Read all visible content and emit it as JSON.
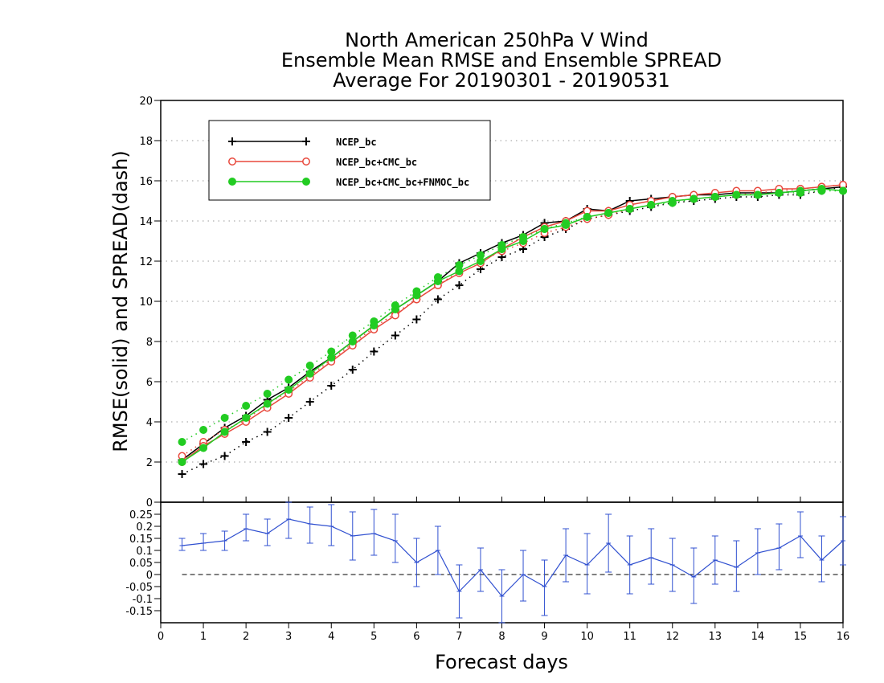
{
  "chart_data": {
    "type": "line",
    "title": [
      "North American 250hPa V Wind",
      "Ensemble Mean RMSE and Ensemble SPREAD",
      "Average For 20190301 - 20190531"
    ],
    "xlabel": "Forecast days",
    "ylabel": "RMSE(solid) and SPREAD(dash)",
    "xlim": [
      0,
      16
    ],
    "ylim": [
      0,
      20
    ],
    "x_ticks": [
      "0",
      "1",
      "2",
      "3",
      "4",
      "5",
      "6",
      "7",
      "8",
      "9",
      "10",
      "11",
      "12",
      "13",
      "14",
      "15",
      "16"
    ],
    "y_ticks": [
      "0",
      "2",
      "4",
      "6",
      "8",
      "10",
      "12",
      "14",
      "16",
      "18",
      "20"
    ],
    "grid": "horizontal dotted",
    "legend_position": "top-left",
    "x": [
      0.5,
      1,
      1.5,
      2,
      2.5,
      3,
      3.5,
      4,
      4.5,
      5,
      5.5,
      6,
      6.5,
      7,
      7.5,
      8,
      8.5,
      9,
      9.5,
      10,
      10.5,
      11,
      11.5,
      12,
      12.5,
      13,
      13.5,
      14,
      14.5,
      15,
      15.5,
      16
    ],
    "series": [
      {
        "name": "NCEP_bc",
        "color": "#000000",
        "marker": "plus",
        "rmse": [
          2.1,
          2.9,
          3.7,
          4.3,
          5.1,
          5.7,
          6.5,
          7.2,
          8.0,
          8.8,
          9.6,
          10.3,
          11.0,
          11.9,
          12.4,
          12.9,
          13.3,
          13.9,
          14.0,
          14.6,
          14.5,
          15.0,
          15.1,
          15.2,
          15.3,
          15.3,
          15.4,
          15.4,
          15.4,
          15.5,
          15.6,
          15.7
        ],
        "spread": [
          1.4,
          1.9,
          2.3,
          3.0,
          3.5,
          4.2,
          5.0,
          5.8,
          6.6,
          7.5,
          8.3,
          9.1,
          10.1,
          10.8,
          11.6,
          12.2,
          12.6,
          13.2,
          13.6,
          14.1,
          14.3,
          14.5,
          14.7,
          14.9,
          15.0,
          15.1,
          15.2,
          15.2,
          15.3,
          15.3,
          15.5,
          15.7
        ]
      },
      {
        "name": "NCEP_bc+CMC_bc",
        "color": "#e8483c",
        "marker": "open-circle",
        "rmse": [
          2.0,
          2.8,
          3.4,
          4.0,
          4.7,
          5.4,
          6.2,
          7.0,
          7.8,
          8.6,
          9.3,
          10.1,
          10.8,
          11.4,
          11.9,
          12.6,
          13.2,
          13.7,
          14.0,
          14.5,
          14.5,
          14.8,
          15.0,
          15.2,
          15.3,
          15.4,
          15.5,
          15.5,
          15.6,
          15.6,
          15.7,
          15.8
        ],
        "spread": [
          2.3,
          3.0,
          3.6,
          4.1,
          4.9,
          5.5,
          6.3,
          7.1,
          7.9,
          8.7,
          9.4,
          10.1,
          10.8,
          11.5,
          12.0,
          12.5,
          12.9,
          13.4,
          13.7,
          14.1,
          14.3,
          14.6,
          14.8,
          15.0,
          15.1,
          15.2,
          15.3,
          15.4,
          15.5,
          15.6,
          15.7,
          15.8
        ]
      },
      {
        "name": "NCEP_bc+CMC_bc+FNMOC_bc",
        "color": "#22cc22",
        "marker": "filled-circle",
        "rmse": [
          2.0,
          2.7,
          3.5,
          4.2,
          4.9,
          5.6,
          6.4,
          7.2,
          8.0,
          8.8,
          9.6,
          10.3,
          11.0,
          11.5,
          12.0,
          12.6,
          13.0,
          13.6,
          13.8,
          14.2,
          14.4,
          14.6,
          14.8,
          15.0,
          15.1,
          15.2,
          15.3,
          15.3,
          15.4,
          15.5,
          15.6,
          15.5
        ],
        "spread": [
          3.0,
          3.6,
          4.2,
          4.8,
          5.4,
          6.1,
          6.8,
          7.5,
          8.3,
          9.0,
          9.8,
          10.5,
          11.2,
          11.8,
          12.3,
          12.8,
          13.2,
          13.6,
          13.9,
          14.2,
          14.4,
          14.6,
          14.8,
          14.9,
          15.1,
          15.2,
          15.3,
          15.3,
          15.4,
          15.4,
          15.5,
          15.5
        ]
      }
    ],
    "difference_panel": {
      "ylim": [
        -0.2,
        0.3
      ],
      "y_ticks": [
        "0.25",
        "0.2",
        "0.15",
        "0.1",
        "0.05",
        "0",
        "-0.05",
        "-0.1",
        "-0.15"
      ],
      "color": "#3050d0",
      "zero_line": "dashed",
      "values": [
        0.12,
        0.13,
        0.14,
        0.19,
        0.17,
        0.23,
        0.21,
        0.2,
        0.16,
        0.17,
        0.14,
        0.05,
        0.1,
        -0.07,
        0.02,
        -0.09,
        0.0,
        -0.05,
        0.08,
        0.04,
        0.13,
        0.04,
        0.07,
        0.04,
        -0.01,
        0.06,
        0.03,
        0.09,
        0.11,
        0.16,
        0.06,
        0.14
      ],
      "upper": [
        0.15,
        0.17,
        0.18,
        0.25,
        0.23,
        0.3,
        0.28,
        0.29,
        0.26,
        0.27,
        0.25,
        0.15,
        0.2,
        0.04,
        0.11,
        0.02,
        0.1,
        0.06,
        0.19,
        0.17,
        0.25,
        0.16,
        0.19,
        0.15,
        0.11,
        0.16,
        0.14,
        0.19,
        0.21,
        0.26,
        0.16,
        0.24
      ],
      "lower": [
        0.1,
        0.1,
        0.1,
        0.14,
        0.12,
        0.15,
        0.13,
        0.12,
        0.06,
        0.08,
        0.05,
        -0.05,
        0.0,
        -0.18,
        -0.07,
        -0.2,
        -0.11,
        -0.17,
        -0.03,
        -0.08,
        0.01,
        -0.08,
        -0.04,
        -0.07,
        -0.12,
        -0.04,
        -0.07,
        0.0,
        0.02,
        0.07,
        -0.03,
        0.04
      ]
    }
  }
}
